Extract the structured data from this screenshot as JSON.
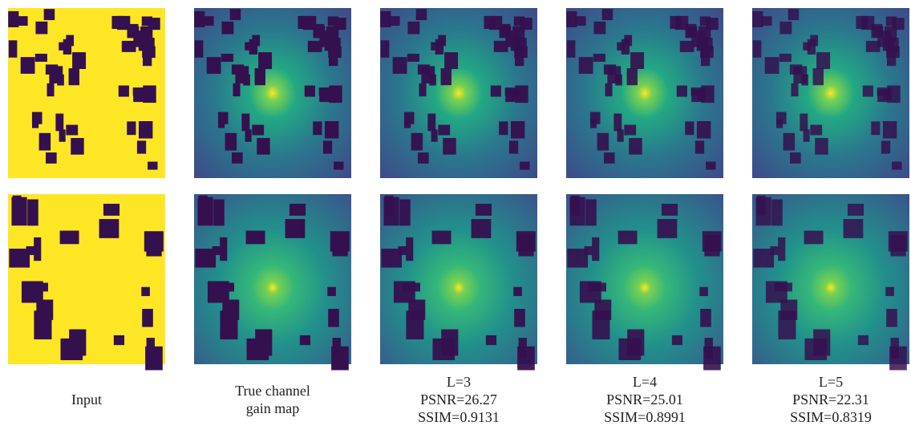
{
  "figure": {
    "columns": [
      {
        "caption": [
          "Input"
        ]
      },
      {
        "caption": [
          "True channel",
          "gain map"
        ]
      },
      {
        "caption": [
          "L=3",
          "PSNR=26.27",
          "SSIM=0.9131"
        ]
      },
      {
        "caption": [
          "L=4",
          "PSNR=25.01",
          "SSIM=0.8991"
        ]
      },
      {
        "caption": [
          "L=5",
          "PSNR=22.31",
          "SSIM=0.8319"
        ]
      }
    ]
  }
}
